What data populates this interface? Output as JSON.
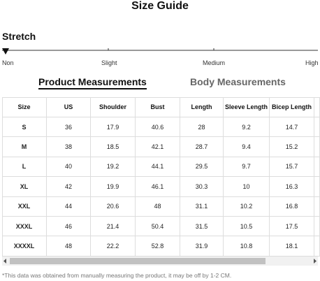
{
  "title": "Size Guide",
  "stretch": {
    "label": "Stretch",
    "levels": [
      "Non",
      "Slight",
      "Medium",
      "High"
    ]
  },
  "tabs": [
    "Product Measurements",
    "Body Measurements"
  ],
  "table": {
    "headers": [
      "Size",
      "US",
      "Shoulder",
      "Bust",
      "Length",
      "Sleeve Length",
      "Bicep Length"
    ],
    "rows": [
      [
        "S",
        36,
        17.9,
        40.6,
        28,
        9.2,
        14.7
      ],
      [
        "M",
        38,
        18.5,
        42.1,
        28.7,
        9.4,
        15.2
      ],
      [
        "L",
        40,
        19.2,
        44.1,
        29.5,
        9.7,
        15.7
      ],
      [
        "XL",
        42,
        19.9,
        46.1,
        30.3,
        10,
        16.3
      ],
      [
        "XXL",
        44,
        20.6,
        48,
        31.1,
        10.2,
        16.8
      ],
      [
        "XXXL",
        46,
        21.4,
        50.4,
        31.5,
        10.5,
        17.5
      ],
      [
        "XXXXL",
        48,
        22.2,
        52.8,
        31.9,
        10.8,
        18.1
      ]
    ]
  },
  "note": "*This data was obtained from manually measuring the product, it may be off by 1-2 CM."
}
